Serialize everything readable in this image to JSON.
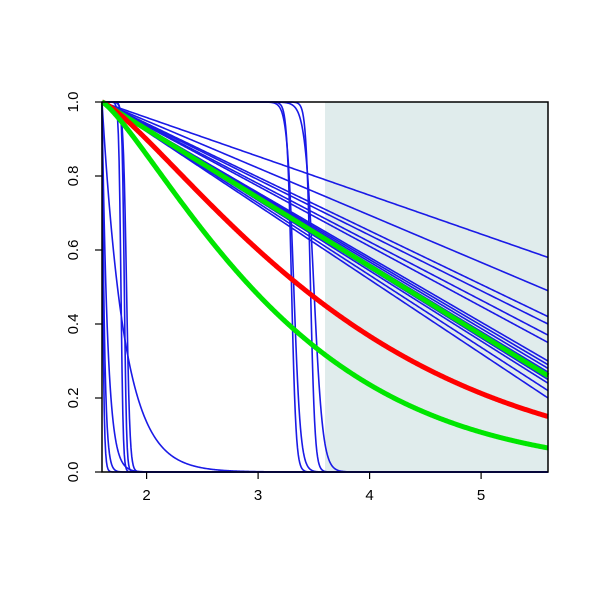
{
  "chart_data": {
    "type": "line",
    "title": "",
    "xlabel": "",
    "ylabel": "",
    "xlim": [
      1.6,
      5.6
    ],
    "ylim": [
      0.0,
      1.0
    ],
    "x_ticks": [
      2,
      3,
      4,
      5
    ],
    "x_tick_labels": [
      "2",
      "3",
      "4",
      "5"
    ],
    "y_ticks": [
      0.0,
      0.2,
      0.4,
      0.6,
      0.8,
      1.0
    ],
    "y_tick_labels": [
      "0.0",
      "0.2",
      "0.4",
      "0.6",
      "0.8",
      "1.0"
    ],
    "grid": false,
    "legend": "none",
    "shaded_region": {
      "x_from": 3.6,
      "x_to": 5.6,
      "color": "#e0ecec"
    },
    "colors": {
      "samples": "#1a1ae6",
      "mean": "#ff0000",
      "bounds": "#00e600",
      "axis": "#000000"
    },
    "series": [
      {
        "role": "sample",
        "shape": "linear",
        "end_value": 0.58
      },
      {
        "role": "sample",
        "shape": "linear",
        "end_value": 0.49
      },
      {
        "role": "sample",
        "shape": "linear",
        "end_value": 0.42
      },
      {
        "role": "sample",
        "shape": "linear",
        "end_value": 0.4
      },
      {
        "role": "sample",
        "shape": "linear",
        "end_value": 0.37
      },
      {
        "role": "sample",
        "shape": "linear",
        "end_value": 0.35
      },
      {
        "role": "sample",
        "shape": "linear",
        "end_value": 0.3
      },
      {
        "role": "sample",
        "shape": "linear",
        "end_value": 0.29
      },
      {
        "role": "sample",
        "shape": "linear",
        "end_value": 0.28
      },
      {
        "role": "sample",
        "shape": "linear",
        "end_value": 0.27
      },
      {
        "role": "sample",
        "shape": "linear",
        "end_value": 0.26
      },
      {
        "role": "sample",
        "shape": "linear",
        "end_value": 0.25
      },
      {
        "role": "sample",
        "shape": "linear",
        "end_value": 0.24
      },
      {
        "role": "sample",
        "shape": "linear",
        "end_value": 0.22
      },
      {
        "role": "sample",
        "shape": "linear",
        "end_value": 0.2
      },
      {
        "role": "sample",
        "shape": "step",
        "midpoint": 3.3,
        "width": 0.02
      },
      {
        "role": "sample",
        "shape": "step",
        "midpoint": 3.32,
        "width": 0.03
      },
      {
        "role": "sample",
        "shape": "step",
        "midpoint": 3.47,
        "width": 0.02
      },
      {
        "role": "sample",
        "shape": "step",
        "midpoint": 3.5,
        "width": 0.04
      },
      {
        "role": "sample",
        "shape": "step",
        "midpoint": 1.8,
        "width": 0.01
      },
      {
        "role": "sample",
        "shape": "step",
        "midpoint": 1.82,
        "width": 0.015
      },
      {
        "role": "sample",
        "shape": "step",
        "midpoint": 1.77,
        "width": 0.01
      },
      {
        "role": "sample",
        "shape": "decay",
        "rate": 20
      },
      {
        "role": "sample",
        "shape": "decay",
        "rate": 5
      },
      {
        "role": "sample",
        "shape": "decay",
        "rate": 45
      },
      {
        "role": "sample",
        "shape": "decay",
        "rate": 90
      },
      {
        "role": "bound",
        "shape": "linear",
        "end_value": 0.26
      },
      {
        "role": "mean",
        "shape": "decay_pow",
        "end_value": 0.15
      },
      {
        "role": "bound",
        "shape": "decay_pow",
        "end_value": 0.065
      }
    ]
  }
}
